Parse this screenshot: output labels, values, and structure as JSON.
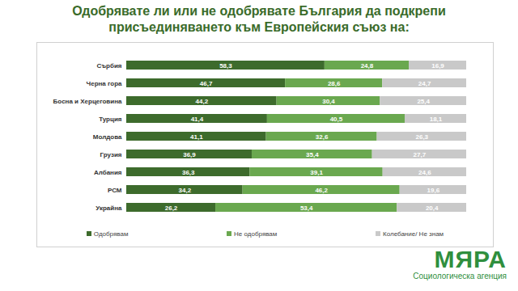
{
  "chart_data": {
    "type": "bar",
    "orientation": "horizontal",
    "stacked": true,
    "data_labels": true,
    "tick_labels": "y",
    "title": "Одобрявате ли или не одобрявате България да подкрепи присъединяването към Европейския съюз на:",
    "categories": [
      "Сърбия",
      "Черна гора",
      "Босна и Херцеговина",
      "Турция",
      "Молдова",
      "Грузия",
      "Албания",
      "РСМ",
      "Украйна"
    ],
    "xlim": [
      0,
      100
    ],
    "legend": "bottom",
    "series": [
      {
        "name": "Одобрявам",
        "color": "#3d6b2c",
        "values": [
          58.3,
          46.7,
          44.2,
          41.4,
          41.1,
          36.9,
          36.3,
          34.2,
          26.2
        ],
        "value_labels": [
          "58,3",
          "46,7",
          "44,2",
          "41,4",
          "41,1",
          "36,9",
          "36,3",
          "34,2",
          "26,2"
        ]
      },
      {
        "name": "Не одобрявам",
        "color": "#6aa84f",
        "values": [
          24.8,
          28.6,
          30.4,
          40.5,
          32.6,
          35.4,
          39.1,
          46.2,
          53.4
        ],
        "value_labels": [
          "24,8",
          "28,6",
          "30,4",
          "40,5",
          "32,6",
          "35,4",
          "39,1",
          "46,2",
          "53,4"
        ]
      },
      {
        "name": "Колебание/ Не знам",
        "color": "#c9c9c9",
        "values": [
          16.9,
          24.7,
          25.4,
          18.1,
          26.3,
          27.7,
          24.6,
          19.6,
          20.4
        ],
        "value_labels": [
          "16,9",
          "24,7",
          "25,4",
          "18,1",
          "26,3",
          "27,7",
          "24,6",
          "19,6",
          "20,4"
        ]
      }
    ],
    "annotations": [
      "МЯРА",
      "Социологическа агенция"
    ]
  }
}
